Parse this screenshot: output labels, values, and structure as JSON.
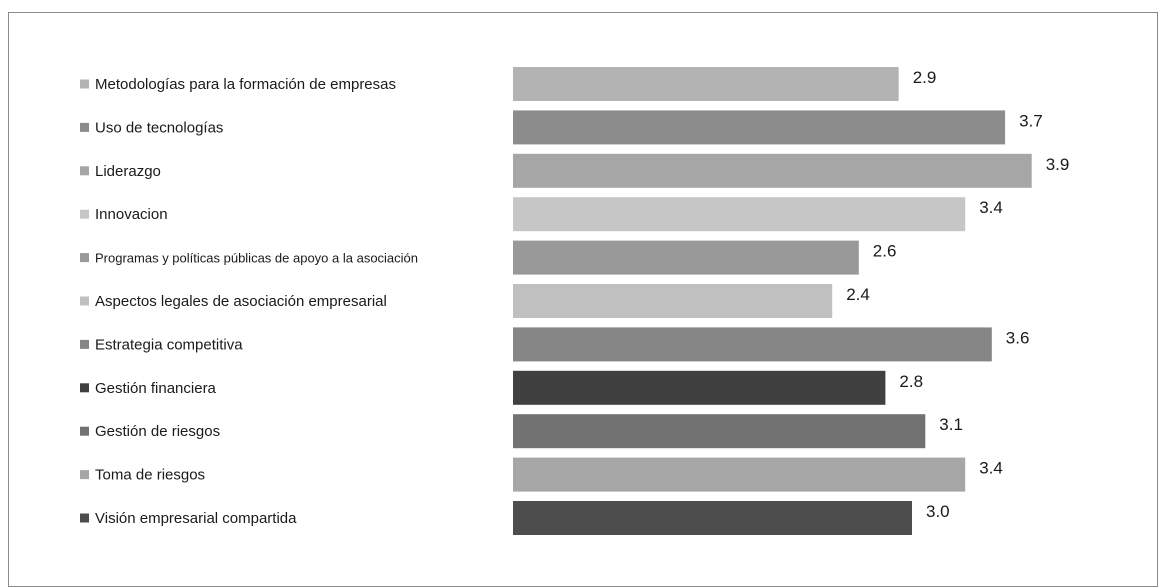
{
  "chart_data": {
    "type": "bar",
    "orientation": "horizontal",
    "categories": [
      "Metodologías para la formación de empresas",
      "Uso de  tecnologías",
      "Liderazgo",
      "Innovacion",
      "Programas y políticas públicas de apoyo a la asociación",
      "Aspectos legales de asociación empresarial",
      "Estrategia competitiva",
      "Gestión financiera",
      "Gestión de riesgos",
      "Toma de riesgos",
      "Visión empresarial compartida"
    ],
    "values": [
      2.9,
      3.7,
      3.9,
      3.4,
      2.6,
      2.4,
      3.6,
      2.8,
      3.1,
      3.4,
      3.0
    ],
    "value_labels": [
      "2.9",
      "3.7",
      "3.9",
      "3.4",
      "2.6",
      "2.4",
      "3.6",
      "2.8",
      "3.1",
      "3.4",
      "3.0"
    ],
    "colors": [
      "#b3b3b3",
      "#8c8c8c",
      "#a6a6a6",
      "#c6c6c6",
      "#999999",
      "#c0c0c0",
      "#858585",
      "#404040",
      "#727272",
      "#a6a6a6",
      "#4d4d4d"
    ],
    "legend_position": "left",
    "grid": false,
    "title": "",
    "xlabel": "",
    "ylabel": ""
  }
}
